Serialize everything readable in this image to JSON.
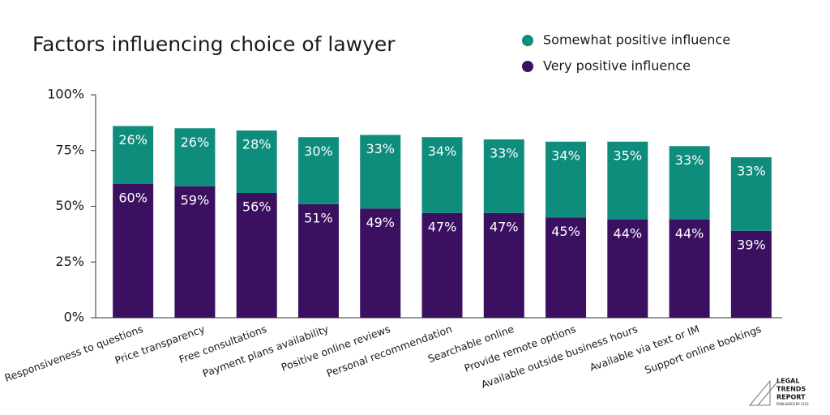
{
  "chart_data": {
    "type": "stacked_bar",
    "title": "Factors influencing choice of lawyer",
    "categories": [
      "Responsiveness to questions",
      "Price transparency",
      "Free consultations",
      "Payment plans availability",
      "Positive online reviews",
      "Personal recommendation",
      "Searchable online",
      "Provide remote options",
      "Available outside business hours",
      "Available via text or IM",
      "Support online bookings"
    ],
    "series": [
      {
        "name": "Somewhat positive influence",
        "color": "#0e8c7c",
        "values": [
          26,
          26,
          28,
          30,
          33,
          34,
          33,
          34,
          35,
          33,
          33
        ],
        "value_labels": [
          "26%",
          "26%",
          "28%",
          "30%",
          "33%",
          "34%",
          "33%",
          "34%",
          "35%",
          "33%",
          "33%"
        ]
      },
      {
        "name": "Very positive influence",
        "color": "#3b1060",
        "values": [
          60,
          59,
          56,
          51,
          49,
          47,
          47,
          45,
          44,
          44,
          39
        ],
        "value_labels": [
          "60%",
          "59%",
          "56%",
          "51%",
          "49%",
          "47%",
          "47%",
          "45%",
          "44%",
          "44%",
          "39%"
        ]
      }
    ],
    "ylim": [
      0,
      100
    ],
    "yticks": [
      {
        "value": 0,
        "label": "0%"
      },
      {
        "value": 25,
        "label": "25%"
      },
      {
        "value": 50,
        "label": "50%"
      },
      {
        "value": 75,
        "label": "75%"
      },
      {
        "value": 100,
        "label": "100%"
      }
    ],
    "grid": false,
    "legend": "top-right"
  },
  "branding": {
    "lines": [
      "LEGAL",
      "TRENDS",
      "REPORT"
    ],
    "tagline": "PUBLISHED BY CLIO"
  }
}
